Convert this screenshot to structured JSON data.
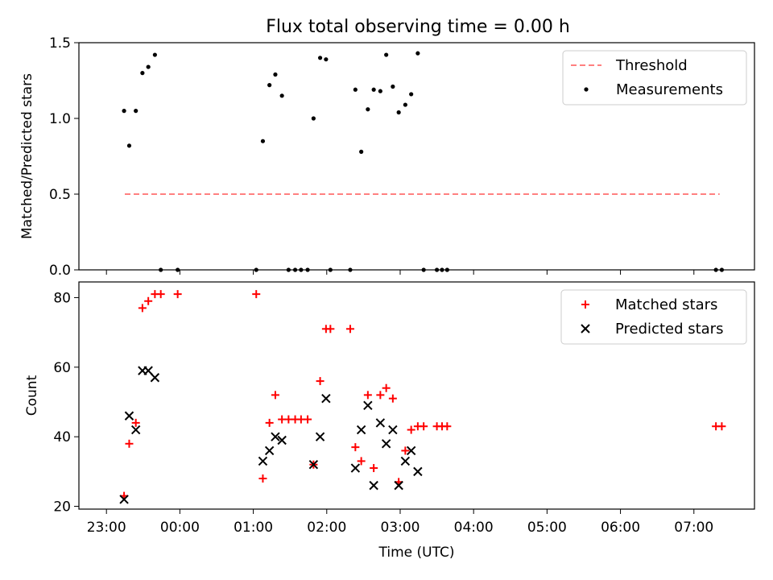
{
  "figure": {
    "title": "Flux total observing time = 0.00 h"
  },
  "chart_data": [
    {
      "type": "scatter",
      "title": "Flux total observing time = 0.00 h",
      "xlabel": "",
      "ylabel": "Matched/Predicted stars",
      "x_unit": "hours from 00:00 UTC",
      "xlim": [
        -1.375,
        7.825
      ],
      "ylim": [
        0,
        1.5
      ],
      "yticks": [
        0.0,
        0.5,
        1.0,
        1.5
      ],
      "ytick_labels": [
        "0.0",
        "0.5",
        "1.0",
        "1.5"
      ],
      "legend_position": "upper right",
      "colors": {
        "threshold": "#ff8080",
        "measurements": "#000000"
      },
      "threshold": {
        "name": "Threshold",
        "y": 0.5,
        "x_range": [
          -0.75,
          7.35
        ]
      },
      "series": [
        {
          "name": "Measurements",
          "x": [
            -0.76,
            -0.69,
            -0.6,
            -0.51,
            -0.43,
            -0.34,
            -0.26,
            -0.03,
            1.04,
            1.13,
            1.22,
            1.3,
            1.39,
            1.48,
            1.57,
            1.65,
            1.74,
            1.82,
            1.91,
            1.99,
            2.05,
            2.32,
            2.39,
            2.47,
            2.56,
            2.64,
            2.73,
            2.81,
            2.9,
            2.98,
            3.07,
            3.15,
            3.24,
            3.32,
            3.5,
            3.57,
            3.64,
            7.3,
            7.38
          ],
          "y": [
            1.05,
            0.82,
            1.05,
            1.3,
            1.34,
            1.42,
            0.0,
            0.0,
            0.0,
            0.85,
            1.22,
            1.29,
            1.15,
            0.0,
            0.0,
            0.0,
            0.0,
            1.0,
            1.4,
            1.39,
            0.0,
            0.0,
            1.19,
            0.78,
            1.06,
            1.19,
            1.18,
            1.42,
            1.21,
            1.04,
            1.09,
            1.16,
            1.43,
            0.0,
            0.0,
            0.0,
            0.0,
            0.0,
            0.0
          ]
        }
      ]
    },
    {
      "type": "scatter",
      "title": "",
      "xlabel": "Time (UTC)",
      "ylabel": "Count",
      "x_unit": "hours from 00:00 UTC",
      "xlim": [
        -1.375,
        7.825
      ],
      "ylim": [
        19.2,
        84.5
      ],
      "yticks": [
        20,
        40,
        60,
        80
      ],
      "ytick_labels": [
        "20",
        "40",
        "60",
        "80"
      ],
      "xtick_labels": [
        "23:00",
        "00:00",
        "01:00",
        "02:00",
        "03:00",
        "04:00",
        "05:00",
        "06:00",
        "07:00"
      ],
      "xtick_hours": [
        -1,
        0,
        1,
        2,
        3,
        4,
        5,
        6,
        7
      ],
      "legend_position": "upper right",
      "colors": {
        "matched": "#ff0000",
        "predicted": "#000000"
      },
      "series": [
        {
          "name": "Matched stars",
          "marker": "plus",
          "x": [
            -0.76,
            -0.69,
            -0.6,
            -0.51,
            -0.43,
            -0.34,
            -0.26,
            -0.03,
            1.04,
            1.13,
            1.22,
            1.3,
            1.39,
            1.48,
            1.57,
            1.65,
            1.74,
            1.82,
            1.91,
            1.99,
            2.05,
            2.32,
            2.39,
            2.47,
            2.56,
            2.64,
            2.73,
            2.81,
            2.9,
            2.98,
            3.07,
            3.15,
            3.24,
            3.32,
            3.5,
            3.57,
            3.64,
            7.3,
            7.38
          ],
          "y": [
            23,
            38,
            44,
            77,
            79,
            81,
            81,
            81,
            81,
            28,
            44,
            52,
            45,
            45,
            45,
            45,
            45,
            32,
            56,
            71,
            71,
            71,
            37,
            33,
            52,
            31,
            52,
            54,
            51,
            27,
            36,
            42,
            43,
            43,
            43,
            43,
            43,
            43,
            43
          ]
        },
        {
          "name": "Predicted stars",
          "marker": "x",
          "x": [
            -0.76,
            -0.69,
            -0.6,
            -0.51,
            -0.43,
            -0.34,
            1.13,
            1.22,
            1.3,
            1.39,
            1.82,
            1.91,
            1.99,
            2.39,
            2.47,
            2.56,
            2.64,
            2.73,
            2.81,
            2.9,
            2.98,
            3.07,
            3.15,
            3.24
          ],
          "y": [
            22,
            46,
            42,
            59,
            59,
            57,
            33,
            36,
            40,
            39,
            32,
            40,
            51,
            31,
            42,
            49,
            26,
            44,
            38,
            42,
            26,
            33,
            36,
            30
          ]
        }
      ]
    }
  ]
}
